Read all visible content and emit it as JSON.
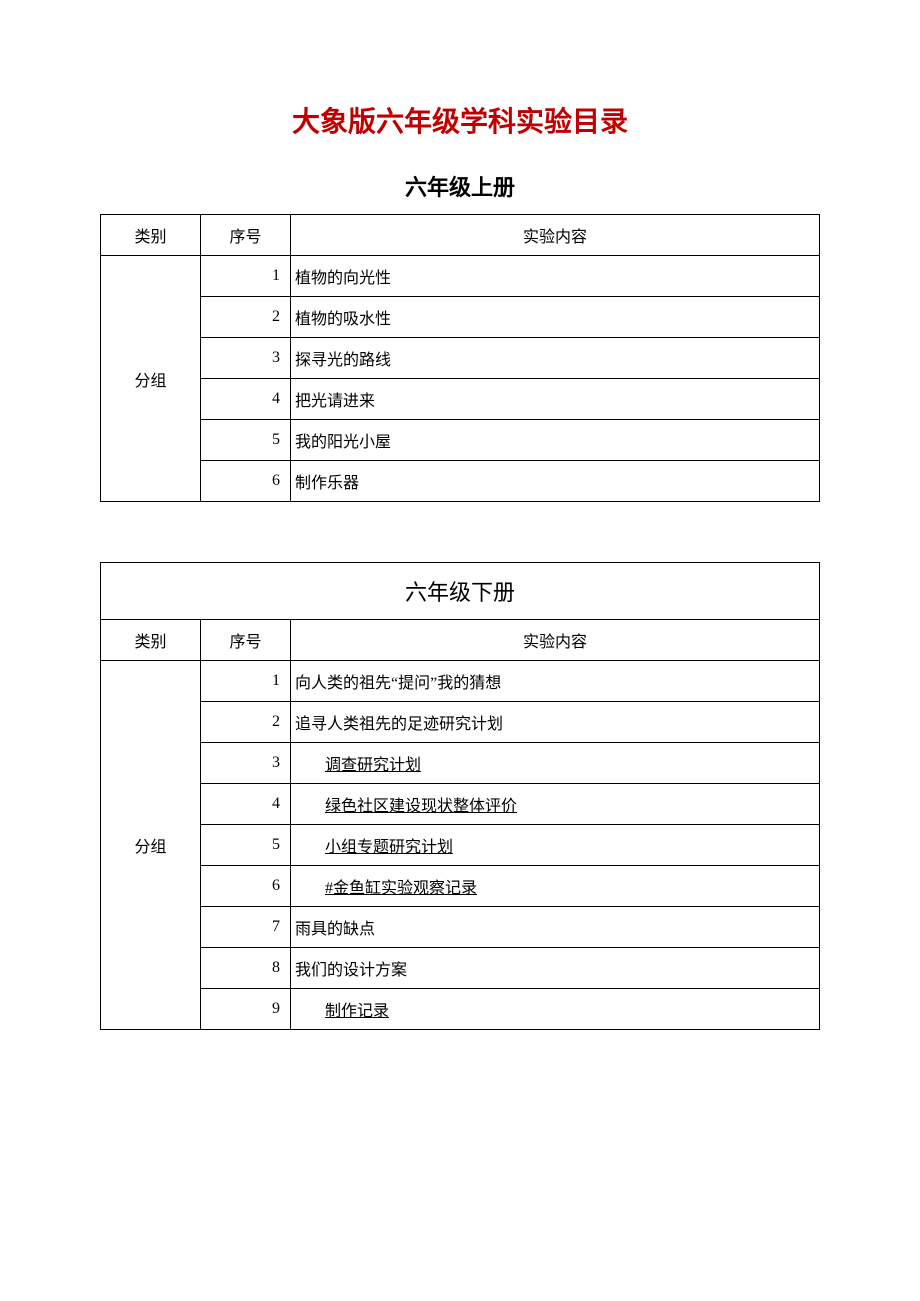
{
  "page_title": "大象版六年级学科实验目录",
  "table1": {
    "subtitle": "六年级上册",
    "headers": {
      "category": "类别",
      "seq": "序号",
      "content": "实验内容"
    },
    "category": "分组",
    "rows": [
      {
        "seq": "1",
        "content": "植物的向光性",
        "link": false
      },
      {
        "seq": "2",
        "content": "植物的吸水性",
        "link": false
      },
      {
        "seq": "3",
        "content": "探寻光的路线",
        "link": false
      },
      {
        "seq": "4",
        "content": "把光请进来",
        "link": false
      },
      {
        "seq": "5",
        "content": "我的阳光小屋",
        "link": false
      },
      {
        "seq": "6",
        "content": "制作乐器",
        "link": false
      }
    ]
  },
  "table2": {
    "subtitle": "六年级下册",
    "headers": {
      "category": "类别",
      "seq": "序号",
      "content": "实验内容"
    },
    "category": "分组",
    "rows": [
      {
        "seq": "1",
        "content": "向人类的祖先“提问”我的猜想",
        "link": false
      },
      {
        "seq": "2",
        "content": "追寻人类祖先的足迹研究计划",
        "link": false
      },
      {
        "seq": "3",
        "content": "调查研究计划",
        "link": true
      },
      {
        "seq": "4",
        "content": "绿色社区建设现状整体评价",
        "link": true
      },
      {
        "seq": "5",
        "content": "小组专题研究计划",
        "link": true
      },
      {
        "seq": "6",
        "content": "#金鱼缸实验观察记录",
        "link": true
      },
      {
        "seq": "7",
        "content": "雨具的缺点",
        "link": false
      },
      {
        "seq": "8",
        "content": "我们的设计方案",
        "link": false
      },
      {
        "seq": "9",
        "content": "制作记录",
        "link": true
      }
    ]
  },
  "colors": {
    "title_color": "#c00000",
    "text_color": "#000000",
    "border_color": "#000000",
    "background_color": "#ffffff"
  },
  "fonts": {
    "title_size": 28,
    "subtitle_size": 22,
    "body_size": 16
  }
}
